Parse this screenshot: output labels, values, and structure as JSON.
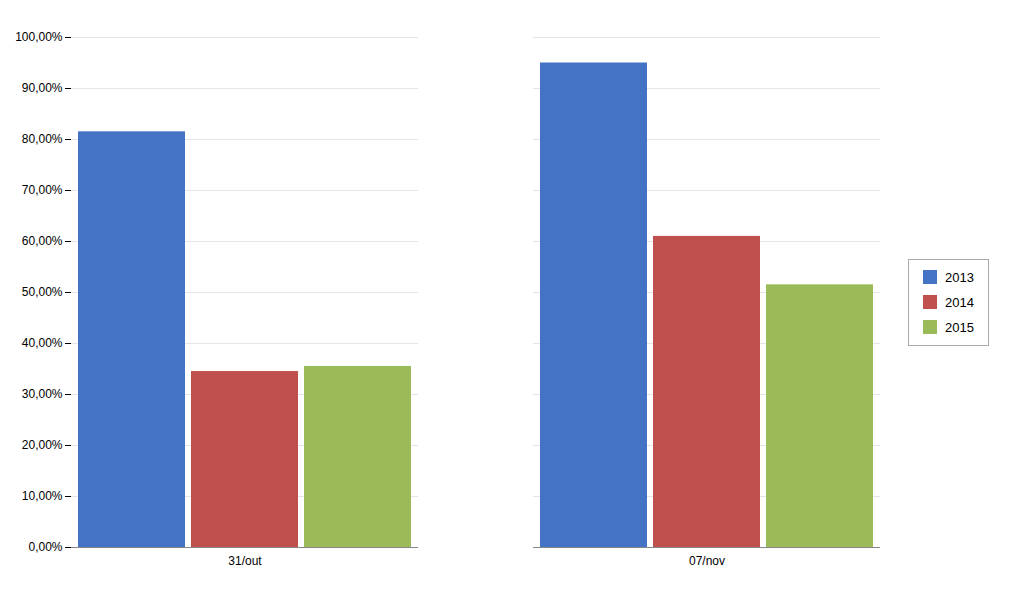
{
  "chart_data": {
    "type": "bar",
    "categories": [
      "31/out",
      "07/nov"
    ],
    "series": [
      {
        "name": "2013",
        "color": "#4472C4",
        "values": [
          0.815,
          0.95
        ]
      },
      {
        "name": "2014",
        "color": "#C0504D",
        "values": [
          0.345,
          0.61
        ]
      },
      {
        "name": "2015",
        "color": "#9BBB59",
        "values": [
          0.355,
          0.515
        ]
      }
    ],
    "ylim": [
      0.0,
      1.0
    ],
    "yticks": [
      {
        "value": 0.0,
        "label": "0,00%"
      },
      {
        "value": 0.1,
        "label": "10,00%"
      },
      {
        "value": 0.2,
        "label": "20,00%"
      },
      {
        "value": 0.3,
        "label": "30,00%"
      },
      {
        "value": 0.4,
        "label": "40,00%"
      },
      {
        "value": 0.5,
        "label": "50,00%"
      },
      {
        "value": 0.6,
        "label": "60,00%"
      },
      {
        "value": 0.7,
        "label": "70,00%"
      },
      {
        "value": 0.8,
        "label": "80,00%"
      },
      {
        "value": 0.9,
        "label": "90,00%"
      },
      {
        "value": 1.0,
        "label": "100,00%"
      }
    ],
    "grid": true,
    "legend": "right"
  }
}
